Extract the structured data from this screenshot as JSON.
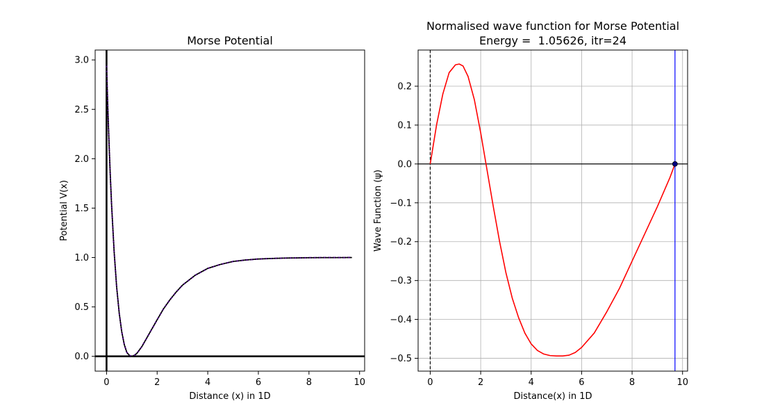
{
  "chart_data": [
    {
      "type": "line",
      "title": "Morse Potential",
      "xlabel": "Distance (x) in 1D",
      "ylabel": "Potential V(x)",
      "xlim": [
        -0.45,
        10.2
      ],
      "ylim": [
        -0.15,
        3.1
      ],
      "xticks": [
        0,
        2,
        4,
        6,
        8,
        10
      ],
      "yticks": [
        0.0,
        0.5,
        1.0,
        1.5,
        2.0,
        2.5,
        3.0
      ],
      "xtick_labels": [
        "0",
        "2",
        "4",
        "6",
        "8",
        "10"
      ],
      "ytick_labels": [
        "0.0",
        "0.5",
        "1.0",
        "1.5",
        "2.0",
        "2.5",
        "3.0"
      ],
      "grid": false,
      "series": [
        {
          "style": "dashed",
          "color": "#4b0082",
          "x": [
            0.0,
            0.05,
            0.1,
            0.15,
            0.2,
            0.3,
            0.4,
            0.5,
            0.6,
            0.7,
            0.8,
            0.9,
            1.0,
            1.1,
            1.2,
            1.4,
            1.6,
            1.8,
            2.0,
            2.25,
            2.5,
            2.75,
            3.0,
            3.5,
            4.0,
            4.5,
            5.0,
            5.5,
            6.0,
            6.5,
            7.0,
            7.5,
            8.0,
            8.5,
            9.0,
            9.7
          ],
          "y": [
            2.95,
            2.52,
            2.15,
            1.82,
            1.53,
            1.06,
            0.7,
            0.44,
            0.25,
            0.12,
            0.04,
            0.01,
            0.0,
            0.01,
            0.03,
            0.1,
            0.19,
            0.28,
            0.37,
            0.48,
            0.57,
            0.65,
            0.72,
            0.82,
            0.89,
            0.93,
            0.96,
            0.975,
            0.985,
            0.99,
            0.994,
            0.996,
            0.998,
            0.999,
            0.999,
            1.0
          ]
        }
      ],
      "reference_lines": [
        {
          "orientation": "horizontal",
          "value": 0,
          "color": "#000000"
        },
        {
          "orientation": "vertical",
          "value": 0,
          "color": "#000000"
        }
      ]
    },
    {
      "type": "line",
      "title": "Normalised wave function for Morse Potential",
      "subtitle": "Energy =  1.05626, itr=24",
      "xlabel": "Distance(x) in 1D",
      "ylabel": "Wave Function (ψ)",
      "xlim": [
        -0.48,
        10.2
      ],
      "ylim": [
        -0.533,
        0.293
      ],
      "xticks": [
        0,
        2,
        4,
        6,
        8,
        10
      ],
      "yticks": [
        -0.5,
        -0.4,
        -0.3,
        -0.2,
        -0.1,
        0.0,
        0.1,
        0.2
      ],
      "xtick_labels": [
        "0",
        "2",
        "4",
        "6",
        "8",
        "10"
      ],
      "ytick_labels": [
        "−0.5",
        "−0.4",
        "−0.3",
        "−0.2",
        "−0.1",
        "0.0",
        "0.1",
        "0.2"
      ],
      "grid": true,
      "series": [
        {
          "style": "solid",
          "color": "#ff0000",
          "x": [
            0.0,
            0.25,
            0.5,
            0.75,
            1.0,
            1.15,
            1.3,
            1.5,
            1.75,
            2.0,
            2.25,
            2.5,
            2.75,
            3.0,
            3.25,
            3.5,
            3.75,
            4.0,
            4.25,
            4.5,
            4.75,
            5.0,
            5.25,
            5.5,
            5.75,
            6.0,
            6.5,
            7.0,
            7.5,
            8.0,
            8.5,
            9.0,
            9.5,
            9.7
          ],
          "y": [
            0.0,
            0.1,
            0.18,
            0.235,
            0.255,
            0.257,
            0.252,
            0.225,
            0.165,
            0.08,
            -0.015,
            -0.11,
            -0.2,
            -0.28,
            -0.345,
            -0.395,
            -0.435,
            -0.463,
            -0.48,
            -0.489,
            -0.493,
            -0.494,
            -0.494,
            -0.492,
            -0.485,
            -0.472,
            -0.435,
            -0.38,
            -0.32,
            -0.25,
            -0.18,
            -0.11,
            -0.035,
            0.0
          ]
        }
      ],
      "reference_lines": [
        {
          "orientation": "horizontal",
          "value": 0,
          "color": "#000000"
        },
        {
          "orientation": "vertical",
          "value": 0,
          "color": "#000000",
          "style": "dashed"
        },
        {
          "orientation": "vertical",
          "value": 9.7,
          "color": "#0000ff"
        }
      ],
      "marker": {
        "x": 9.7,
        "y": 0.0,
        "color": "#000080"
      }
    }
  ]
}
